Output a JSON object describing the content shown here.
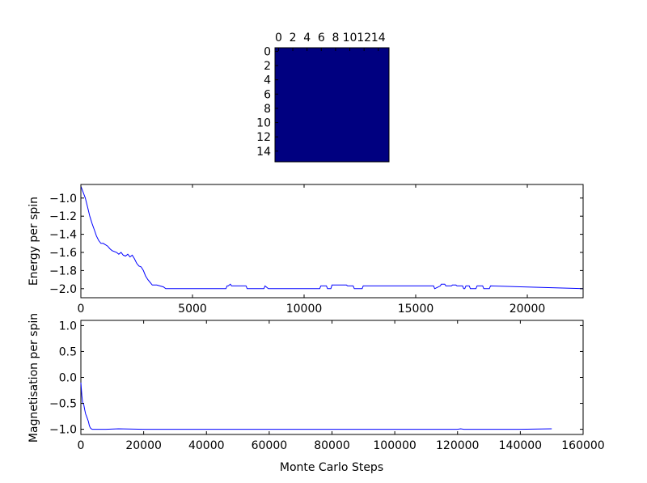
{
  "chart_data": [
    {
      "type": "heatmap",
      "title": "",
      "x_ticks": [
        0,
        2,
        4,
        6,
        8,
        10,
        12,
        14
      ],
      "y_ticks": [
        0,
        2,
        4,
        6,
        8,
        10,
        12,
        14
      ],
      "xlim": [
        -0.5,
        15.5
      ],
      "ylim": [
        -0.5,
        15.5
      ],
      "grid_size": 16,
      "cell_value": -1,
      "cell_color": "#000080",
      "x_ticks_position": "top"
    },
    {
      "type": "line",
      "xlabel": "",
      "ylabel": "Energy per spin",
      "xlim": [
        0,
        22500
      ],
      "ylim": [
        -2.1,
        -0.85
      ],
      "x_ticks": [
        0,
        5000,
        10000,
        15000,
        20000
      ],
      "y_ticks": [
        -1.0,
        -1.2,
        -1.4,
        -1.6,
        -1.8,
        -2.0
      ],
      "y_tick_labels": [
        "−1.0",
        "−1.2",
        "−1.4",
        "−1.6",
        "−1.8",
        "−2.0"
      ],
      "grid": false,
      "series": [
        {
          "color": "#0000ff",
          "x": [
            0,
            200,
            300,
            400,
            500,
            600,
            700,
            800,
            900,
            1000,
            1200,
            1300,
            1400,
            1600,
            1700,
            1800,
            1900,
            2000,
            2100,
            2200,
            2300,
            2400,
            2500,
            2600,
            2700,
            2800,
            2900,
            3000,
            3100,
            3200,
            3400,
            3700,
            3800,
            6500,
            6550,
            6600,
            6700,
            6750,
            6800,
            7400,
            7450,
            8200,
            8250,
            8400,
            10700,
            10750,
            11000,
            11050,
            11200,
            11250,
            11900,
            11950,
            12200,
            12250,
            12600,
            12650,
            15800,
            15850,
            16100,
            16150,
            16300,
            16350,
            16600,
            16650,
            16800,
            16850,
            17100,
            17150,
            17200,
            17250,
            17400,
            17450,
            17700,
            17750,
            18000,
            18050,
            18300,
            18350,
            22500
          ],
          "y": [
            -0.87,
            -1.0,
            -1.1,
            -1.2,
            -1.28,
            -1.35,
            -1.42,
            -1.47,
            -1.5,
            -1.5,
            -1.53,
            -1.56,
            -1.58,
            -1.6,
            -1.62,
            -1.6,
            -1.63,
            -1.64,
            -1.62,
            -1.65,
            -1.63,
            -1.67,
            -1.72,
            -1.75,
            -1.76,
            -1.8,
            -1.86,
            -1.9,
            -1.93,
            -1.96,
            -1.96,
            -1.98,
            -2.0,
            -2.0,
            -1.97,
            -1.97,
            -1.95,
            -1.97,
            -1.97,
            -1.97,
            -2.0,
            -2.0,
            -1.97,
            -2.0,
            -2.0,
            -1.97,
            -1.97,
            -2.0,
            -2.0,
            -1.96,
            -1.96,
            -1.97,
            -1.97,
            -2.0,
            -2.0,
            -1.97,
            -1.97,
            -2.0,
            -1.97,
            -1.95,
            -1.95,
            -1.97,
            -1.97,
            -1.96,
            -1.96,
            -1.97,
            -1.97,
            -2.0,
            -2.0,
            -1.97,
            -1.97,
            -2.0,
            -2.0,
            -1.97,
            -1.97,
            -2.0,
            -2.0,
            -1.97,
            -2.0
          ]
        }
      ]
    },
    {
      "type": "line",
      "xlabel": "Monte Carlo Steps",
      "ylabel": "Magnetisation per spin",
      "xlim": [
        0,
        160000
      ],
      "ylim": [
        -1.1,
        1.1
      ],
      "x_ticks": [
        0,
        20000,
        40000,
        60000,
        80000,
        100000,
        120000,
        140000,
        160000
      ],
      "y_ticks": [
        1.0,
        0.5,
        0.0,
        -0.5,
        -1.0
      ],
      "y_tick_labels": [
        "1.0",
        "0.5",
        "0.0",
        "−0.5",
        "−1.0"
      ],
      "grid": false,
      "series": [
        {
          "color": "#0000ff",
          "x": [
            0,
            300,
            600,
            900,
            1200,
            1500,
            1800,
            2100,
            2400,
            2700,
            3000,
            3300,
            3600,
            4000,
            5000,
            8000,
            12000,
            20000,
            40000,
            60000,
            80000,
            100000,
            120000,
            121000,
            122000,
            140000,
            150000
          ],
          "y": [
            -0.1,
            -0.35,
            -0.5,
            -0.52,
            -0.62,
            -0.7,
            -0.75,
            -0.8,
            -0.85,
            -0.93,
            -0.97,
            -0.99,
            -1.0,
            -1.0,
            -1.0,
            -1.0,
            -0.99,
            -1.0,
            -1.0,
            -1.0,
            -1.0,
            -1.0,
            -1.0,
            -0.99,
            -1.0,
            -1.0,
            -0.99
          ]
        }
      ]
    }
  ]
}
